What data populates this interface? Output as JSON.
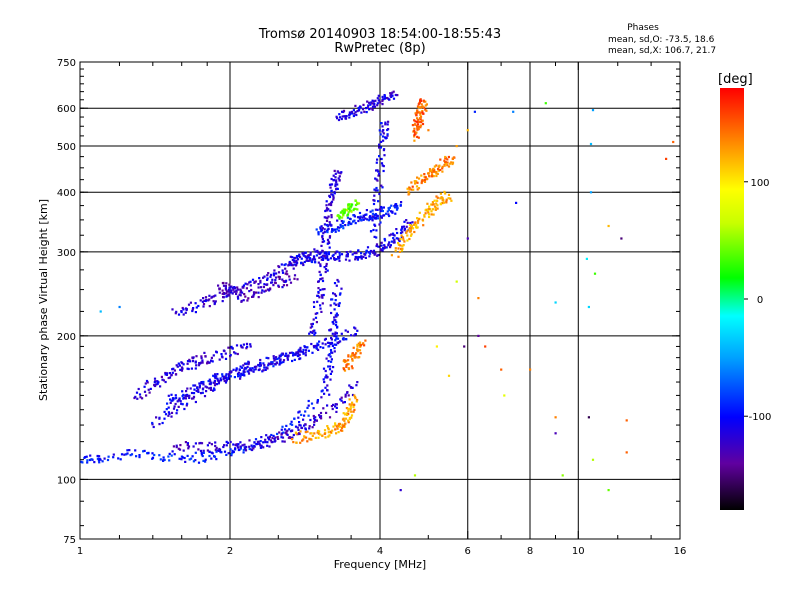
{
  "chart_data": {
    "type": "scatter",
    "title": "Tromsø 20140903 18:54:00-18:55:43",
    "subtitle": "RwPretec (8p)",
    "stats": {
      "heading": "Phases",
      "line1": "mean, sd,O: -73.5, 18.6",
      "line2": "mean, sd,X: 106.7, 21.7"
    },
    "xlabel": "Frequency [MHz]",
    "ylabel": "Stationary phase Virtual Height [km]",
    "xscale": "log",
    "yscale": "log",
    "xlim": [
      1,
      16
    ],
    "ylim": [
      75,
      750
    ],
    "xticks": [
      1,
      2,
      4,
      6,
      8,
      10,
      16
    ],
    "xtick_labels": [
      "1",
      "2",
      "4",
      "6",
      "8",
      "10",
      "16"
    ],
    "yticks": [
      75,
      100,
      200,
      300,
      400,
      500,
      600,
      750
    ],
    "ytick_labels": [
      "75",
      "100",
      "200",
      "300",
      "400",
      "500",
      "600",
      "750"
    ],
    "x_gridlines": [
      2,
      4,
      6,
      8,
      10
    ],
    "y_gridlines": [
      100,
      200,
      300,
      400,
      500,
      600
    ],
    "colorbar": {
      "label": "[deg]",
      "range": [
        -180,
        180
      ],
      "ticks": [
        100,
        0,
        -100
      ],
      "tick_labels": [
        "100",
        "0",
        "-100"
      ]
    },
    "traces": [
      {
        "x": [
          1.0,
          1.1,
          1.3,
          1.5,
          1.7,
          1.9,
          2.1,
          2.4,
          2.7,
          3.0
        ],
        "y": [
          110,
          111,
          113,
          112,
          111,
          113,
          116,
          122,
          132,
          146
        ],
        "phase": -95
      },
      {
        "x": [
          1.55,
          1.75,
          2.0,
          2.2,
          2.4,
          2.6,
          2.8,
          3.0,
          3.3,
          3.6
        ],
        "y": [
          118,
          117,
          117,
          118,
          120,
          124,
          128,
          134,
          144,
          160
        ],
        "phase": -120
      },
      {
        "x": [
          1.5,
          1.6,
          1.75,
          1.9,
          2.05,
          2.2,
          2.4,
          2.6,
          2.8,
          3.0,
          3.3,
          3.6
        ],
        "y": [
          145,
          150,
          157,
          163,
          168,
          173,
          176,
          180,
          185,
          190,
          197,
          205
        ],
        "phase": -105
      },
      {
        "x": [
          1.4,
          1.55,
          1.7,
          1.85,
          2.0,
          2.2,
          2.4,
          2.6,
          2.8
        ],
        "y": [
          132,
          140,
          150,
          158,
          165,
          170,
          175,
          180,
          185
        ],
        "phase": -110
      },
      {
        "x": [
          1.3,
          1.4,
          1.5,
          1.6,
          1.7,
          1.8,
          2.0,
          2.2
        ],
        "y": [
          150,
          158,
          165,
          172,
          176,
          180,
          184,
          190
        ],
        "phase": -118
      },
      {
        "x": [
          1.55,
          1.7,
          1.85,
          2.0,
          2.2,
          2.4,
          2.6,
          2.8,
          3.0
        ],
        "y": [
          225,
          230,
          238,
          245,
          255,
          265,
          278,
          290,
          300
        ],
        "phase": -118
      },
      {
        "x": [
          1.9,
          2.0,
          2.1,
          2.3,
          2.5,
          2.7
        ],
        "y": [
          250,
          255,
          240,
          248,
          258,
          268
        ],
        "phase": -125
      },
      {
        "x": [
          2.6,
          2.8,
          3.0,
          3.2,
          3.4,
          3.6,
          3.8,
          4.0,
          4.2,
          4.4,
          4.6
        ],
        "y": [
          285,
          290,
          292,
          293,
          294,
          296,
          298,
          305,
          315,
          330,
          345
        ],
        "phase": -110
      },
      {
        "x": [
          3.0,
          3.2,
          3.4,
          3.6,
          3.8,
          4.0,
          4.2,
          4.4
        ],
        "y": [
          330,
          338,
          346,
          352,
          358,
          362,
          368,
          375
        ],
        "phase": -95
      },
      {
        "x": [
          2.9,
          3.0,
          3.05,
          3.1,
          3.12,
          3.15,
          3.2,
          3.25,
          3.3
        ],
        "y": [
          200,
          230,
          260,
          290,
          320,
          360,
          390,
          420,
          440
        ],
        "phase": -115
      },
      {
        "x": [
          3.1,
          3.15,
          3.2,
          3.22,
          3.25,
          3.3
        ],
        "y": [
          150,
          170,
          190,
          210,
          230,
          260
        ],
        "phase": -108
      },
      {
        "x": [
          3.9,
          3.95,
          4.0,
          4.05,
          4.1
        ],
        "y": [
          320,
          380,
          450,
          520,
          560
        ],
        "phase": -110
      },
      {
        "x": [
          3.3,
          3.5,
          3.7,
          3.9,
          4.1,
          4.3
        ],
        "y": [
          580,
          585,
          600,
          615,
          630,
          640
        ],
        "phase": -115
      },
      {
        "x": [
          4.3,
          4.5,
          4.7,
          4.9,
          5.1,
          5.3,
          5.5
        ],
        "y": [
          300,
          320,
          340,
          358,
          372,
          385,
          395
        ],
        "phase": 125
      },
      {
        "x": [
          4.6,
          4.8,
          5.0,
          5.2,
          5.4,
          5.6
        ],
        "y": [
          400,
          418,
          436,
          448,
          460,
          470
        ],
        "phase": 140
      },
      {
        "x": [
          4.7,
          4.75,
          4.8,
          4.85,
          4.9
        ],
        "y": [
          520,
          550,
          575,
          600,
          620
        ],
        "phase": 150
      },
      {
        "x": [
          2.7,
          2.9,
          3.1,
          3.3,
          3.4,
          3.5,
          3.55
        ],
        "y": [
          122,
          124,
          126,
          128,
          132,
          140,
          150
        ],
        "phase": 130
      },
      {
        "x": [
          3.4,
          3.5,
          3.6,
          3.7
        ],
        "y": [
          170,
          178,
          186,
          193
        ],
        "phase": 140
      },
      {
        "x": [
          3.3,
          3.4,
          3.5,
          3.6
        ],
        "y": [
          360,
          366,
          372,
          378
        ],
        "phase": 40
      }
    ],
    "scatter_points": [
      {
        "x": 6.2,
        "y": 590,
        "phase": -90
      },
      {
        "x": 7.4,
        "y": 590,
        "phase": -60
      },
      {
        "x": 8.6,
        "y": 615,
        "phase": 30
      },
      {
        "x": 10.7,
        "y": 595,
        "phase": -50
      },
      {
        "x": 10.6,
        "y": 505,
        "phase": -40
      },
      {
        "x": 10.6,
        "y": 400,
        "phase": -50
      },
      {
        "x": 10.4,
        "y": 290,
        "phase": -20
      },
      {
        "x": 10.8,
        "y": 270,
        "phase": 30
      },
      {
        "x": 11.5,
        "y": 340,
        "phase": 120
      },
      {
        "x": 12.2,
        "y": 320,
        "phase": -150
      },
      {
        "x": 10.5,
        "y": 230,
        "phase": -30
      },
      {
        "x": 9.0,
        "y": 235,
        "phase": -30
      },
      {
        "x": 7.5,
        "y": 380,
        "phase": -100
      },
      {
        "x": 6.0,
        "y": 320,
        "phase": -130
      },
      {
        "x": 6.3,
        "y": 200,
        "phase": -140
      },
      {
        "x": 5.9,
        "y": 190,
        "phase": -150
      },
      {
        "x": 6.5,
        "y": 190,
        "phase": 160
      },
      {
        "x": 7.0,
        "y": 170,
        "phase": 150
      },
      {
        "x": 8.0,
        "y": 170,
        "phase": 140
      },
      {
        "x": 9.0,
        "y": 135,
        "phase": 140
      },
      {
        "x": 9.0,
        "y": 125,
        "phase": -130
      },
      {
        "x": 10.5,
        "y": 135,
        "phase": -160
      },
      {
        "x": 12.5,
        "y": 133,
        "phase": 150
      },
      {
        "x": 12.5,
        "y": 114,
        "phase": 150
      },
      {
        "x": 10.7,
        "y": 110,
        "phase": 60
      },
      {
        "x": 11.5,
        "y": 95,
        "phase": 40
      },
      {
        "x": 9.3,
        "y": 102,
        "phase": 50
      },
      {
        "x": 4.4,
        "y": 95,
        "phase": -120
      },
      {
        "x": 4.7,
        "y": 102,
        "phase": 60
      },
      {
        "x": 7.1,
        "y": 150,
        "phase": 80
      },
      {
        "x": 5.5,
        "y": 165,
        "phase": 110
      },
      {
        "x": 5.2,
        "y": 190,
        "phase": 100
      },
      {
        "x": 5.7,
        "y": 260,
        "phase": 70
      },
      {
        "x": 6.3,
        "y": 240,
        "phase": 140
      },
      {
        "x": 5.7,
        "y": 500,
        "phase": 130
      },
      {
        "x": 5.0,
        "y": 540,
        "phase": 140
      },
      {
        "x": 6.0,
        "y": 540,
        "phase": 120
      },
      {
        "x": 15.0,
        "y": 470,
        "phase": 160
      },
      {
        "x": 15.5,
        "y": 510,
        "phase": 150
      },
      {
        "x": 1.2,
        "y": 230,
        "phase": -60
      },
      {
        "x": 1.1,
        "y": 225,
        "phase": -40
      }
    ]
  }
}
